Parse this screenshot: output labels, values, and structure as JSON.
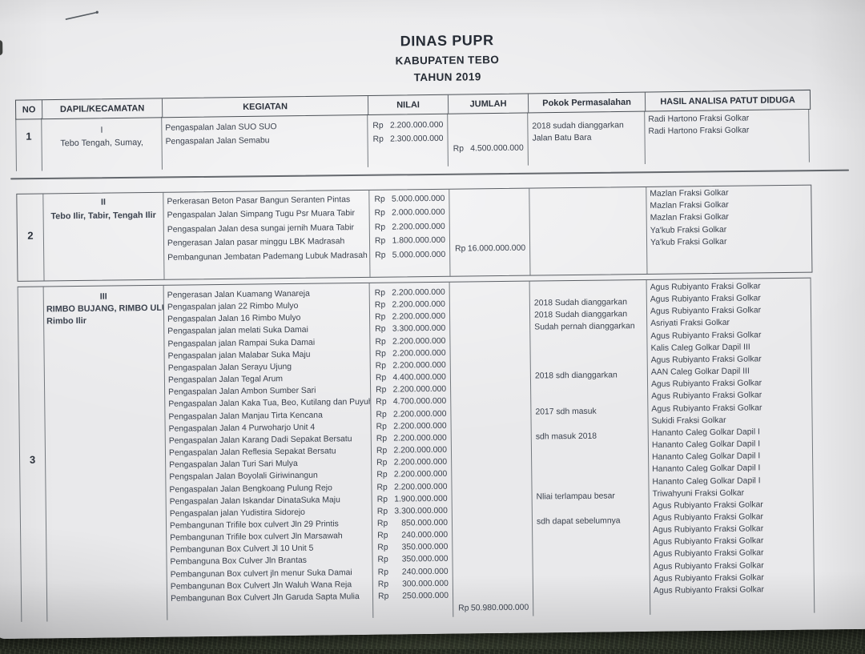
{
  "title": {
    "agency": "DINAS PUPR",
    "region": "KABUPATEN TEBO",
    "year": "TAHUN 2019"
  },
  "table": {
    "currency": "Rp",
    "headers": {
      "no": "NO",
      "dapil": "DAPIL/KECAMATAN",
      "kegiatan": "KEGIATAN",
      "nilai": "NILAI",
      "jumlah": "JUMLAH",
      "pokok": "Pokok Permasalahan",
      "hasil": "HASIL ANALISA PATUT DIDUGA"
    },
    "rows": [
      {
        "no": "1",
        "dapil": [
          "I",
          "Tebo Tengah, Sumay,"
        ],
        "lines": [
          {
            "kegiatan": "Pengaspalan Jalan SUO SUO",
            "nilai": "2.200.000.000",
            "pokok": "2018 sudah dianggarkan",
            "hasil": "Radi Hartono Fraksi Golkar"
          },
          {
            "kegiatan": "Pengaspalan Jalan Semabu",
            "nilai": "2.300.000.000",
            "pokok": "Jalan Batu Bara",
            "hasil": "Radi Hartono Fraksi Golkar"
          }
        ],
        "jumlah": "4.500.000.000"
      },
      {
        "no": "2",
        "dapil": [
          "II",
          "Tebo Ilir, Tabir, Tengah Ilir"
        ],
        "lines": [
          {
            "kegiatan": "Perkerasan Beton Pasar Bangun Seranten Pintas",
            "nilai": "5.000.000.000",
            "hasil": "Mazlan Fraksi Golkar"
          },
          {
            "kegiatan": "Pengaspalan Jalan Simpang Tugu Psr Muara Tabir",
            "nilai": "2.000.000.000",
            "hasil": "Mazlan Fraksi Golkar"
          },
          {
            "kegiatan": "Pengaspalan Jalan desa sungai jernih Muara Tabir",
            "nilai": "2.200.000.000",
            "hasil": "Mazlan Fraksi Golkar"
          },
          {
            "kegiatan": "Pengerasan Jalan pasar minggu LBK Madrasah",
            "nilai": "1.800.000.000",
            "hasil": "Ya'kub Fraksi Golkar"
          },
          {
            "kegiatan": "Pembangunan Jembatan Pademang Lubuk Madrasah",
            "nilai": "5.000.000.000",
            "hasil": "Ya'kub Fraksi Golkar"
          }
        ],
        "jumlah": "16.000.000.000"
      },
      {
        "no": "3",
        "dapil": [
          "III",
          "RIMBO BUJANG, RIMBO ULU",
          "Rimbo Ilir"
        ],
        "lines": [
          {
            "kegiatan": "Pengerasan Jalan Kuamang Wanareja",
            "nilai": "2.200.000.000",
            "hasil": "Agus Rubiyanto Fraksi Golkar"
          },
          {
            "kegiatan": "Pengaspalan jalan 22 Rimbo Mulyo",
            "nilai": "2.200.000.000",
            "pokok": "2018 Sudah dianggarkan",
            "hasil": "Agus Rubiyanto Fraksi Golkar"
          },
          {
            "kegiatan": "Pengaspalan Jalan 16 Rimbo Mulyo",
            "nilai": "2.200.000.000",
            "pokok": "2018 Sudah dianggarkan",
            "hasil": "Agus Rubiyanto Fraksi Golkar"
          },
          {
            "kegiatan": "Pengaspalan jalan melati Suka Damai",
            "nilai": "3.300.000.000",
            "pokok": "Sudah pernah dianggarkan",
            "hasil": "Asriyati Fraksi Golkar"
          },
          {
            "kegiatan": "Pengaspalan jalan Rampai Suka Damai",
            "nilai": "2.200.000.000",
            "hasil": "Agus Rubiyanto Fraksi Golkar"
          },
          {
            "kegiatan": "Pengaspalan jalan Malabar Suka Maju",
            "nilai": "2.200.000.000",
            "hasil": "Kalis Caleg Golkar Dapil III"
          },
          {
            "kegiatan": "Pengaspalan Jalan Serayu Ujung",
            "nilai": "2.200.000.000",
            "hasil": "Agus Rubiyanto Fraksi Golkar"
          },
          {
            "kegiatan": "Pengaspalan Jalan Tegal Arum",
            "nilai": "4.400.000.000",
            "pokok": "2018 sdh dianggarkan",
            "hasil": "AAN Caleg Golkar Dapil III"
          },
          {
            "kegiatan": "Pengaspalan Jalan Ambon Sumber Sari",
            "nilai": "2.200.000.000",
            "hasil": "Agus Rubiyanto Fraksi Golkar"
          },
          {
            "kegiatan": "Pengaspalan Jalan Kaka Tua, Beo, Kutilang dan Puyuh",
            "nilai": "4.700.000.000",
            "hasil": "Agus Rubiyanto Fraksi Golkar"
          },
          {
            "kegiatan": "Pengaspalan Jalan Manjau Tirta Kencana",
            "nilai": "2.200.000.000",
            "pokok": "2017 sdh masuk",
            "hasil": "Agus Rubiyanto Fraksi Golkar"
          },
          {
            "kegiatan": "Pengaspalan Jalan 4 Purwoharjo Unit 4",
            "nilai": "2.200.000.000",
            "hasil": "Sukidi Fraksi Golkar"
          },
          {
            "kegiatan": "Pengaspalan Jalan Karang Dadi Sepakat Bersatu",
            "nilai": "2.200.000.000",
            "pokok": "sdh masuk 2018",
            "hasil": "Hananto Caleg Golkar Dapil I"
          },
          {
            "kegiatan": "Pengaspalan Jalan Reflesia Sepakat Bersatu",
            "nilai": "2.200.000.000",
            "hasil": "Hananto Caleg Golkar Dapil I"
          },
          {
            "kegiatan": "Pengaspalan Jalan Turi Sari Mulya",
            "nilai": "2.200.000.000",
            "hasil": "Hananto Caleg Golkar Dapil I"
          },
          {
            "kegiatan": "Pengspalan Jalan Boyolali Giriwinangun",
            "nilai": "2.200.000.000",
            "hasil": "Hananto Caleg Golkar Dapil I"
          },
          {
            "kegiatan": "Pengaspalan Jalan Bengkoang Pulung Rejo",
            "nilai": "2.200.000.000",
            "hasil": "Hananto Caleg Golkar Dapil I"
          },
          {
            "kegiatan": "Pengaspalan Jalan Iskandar DinataSuka Maju",
            "nilai": "1.900.000.000",
            "pokok": "Nliai terlampau besar",
            "hasil": "Triwahyuni Fraksi Golkar"
          },
          {
            "kegiatan": "Pengaspalan jalan Yudistira Sidorejo",
            "nilai": "3.300.000.000",
            "hasil": "Agus Rubiyanto Fraksi Golkar"
          },
          {
            "kegiatan": "Pembangunan Trifile box culvert Jln 29 Printis",
            "nilai": "850.000.000",
            "pokok": "sdh dapat sebelumnya",
            "hasil": "Agus Rubiyanto Fraksi Golkar"
          },
          {
            "kegiatan": "Pembangunan Trifile box culvert Jln Marsawah",
            "nilai": "240.000.000",
            "hasil": "Agus Rubiyanto Fraksi Golkar"
          },
          {
            "kegiatan": "Pembangunan Box Culvert Jl 10 Unit 5",
            "nilai": "350.000.000",
            "hasil": "Agus Rubiyanto Fraksi Golkar"
          },
          {
            "kegiatan": "Pembanguna Box Culver Jln Brantas",
            "nilai": "350.000.000",
            "hasil": "Agus Rubiyanto Fraksi Golkar"
          },
          {
            "kegiatan": "Pembangunan Box culvert jln menur Suka Damai",
            "nilai": "240.000.000",
            "hasil": "Agus Rubiyanto Fraksi Golkar"
          },
          {
            "kegiatan": "Pembangunan Box Culvert Jln Waluh Wana Reja",
            "nilai": "300.000.000",
            "hasil": "Agus Rubiyanto Fraksi Golkar"
          },
          {
            "kegiatan": "Pembangunan Box Culvert Jln Garuda Sapta Mulia",
            "nilai": "250.000.000",
            "hasil": "Agus Rubiyanto Fraksi Golkar"
          }
        ],
        "jumlah": "50.980.000.000"
      }
    ]
  }
}
